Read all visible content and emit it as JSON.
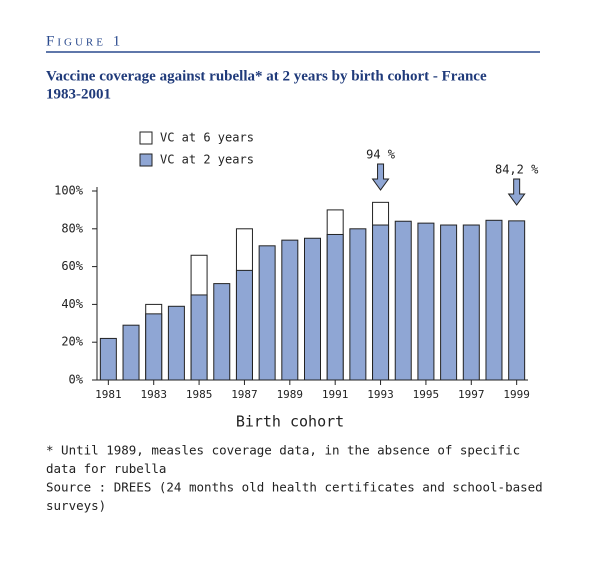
{
  "figure_label": "Figure 1",
  "chart_data": {
    "type": "bar",
    "title": "Vaccine coverage against rubella* at 2 years by birth cohort - France",
    "subtitle": "1983-2001",
    "x_label": "Birth cohort",
    "categories": [
      "1981",
      null,
      "1983",
      null,
      "1985",
      null,
      "1987",
      null,
      "1989",
      null,
      "1991",
      null,
      "1993",
      null,
      "1995",
      null,
      "1997",
      null,
      "1999"
    ],
    "series": [
      {
        "name": "VC at 6 years",
        "color": "#ffffff",
        "values": [
          null,
          null,
          40,
          null,
          66,
          null,
          80,
          null,
          null,
          null,
          90,
          null,
          94,
          null,
          null,
          null,
          null,
          null,
          null
        ]
      },
      {
        "name": "VC at 2 years",
        "color": "#8fa6d4",
        "values": [
          22,
          29,
          35,
          39,
          45,
          51,
          58,
          71,
          74,
          75,
          77,
          80,
          82,
          84,
          83,
          82,
          82,
          84.5,
          84.2
        ]
      }
    ],
    "annotations": [
      "94 %",
      "84,2 %"
    ],
    "ylim": [
      0,
      100
    ],
    "yticks": [
      {
        "value": 0,
        "label": "0%"
      },
      {
        "value": 20,
        "label": "20%"
      },
      {
        "value": 40,
        "label": "40%"
      },
      {
        "value": 60,
        "label": "60%"
      },
      {
        "value": 80,
        "label": "80%"
      },
      {
        "value": 100,
        "label": "100%"
      }
    ],
    "notes": [
      "* Until 1989, measles coverage data, in the absence of specific",
      "data for rubella",
      "Source : DREES (24 months old health certificates and school-based",
      "surveys)"
    ]
  }
}
